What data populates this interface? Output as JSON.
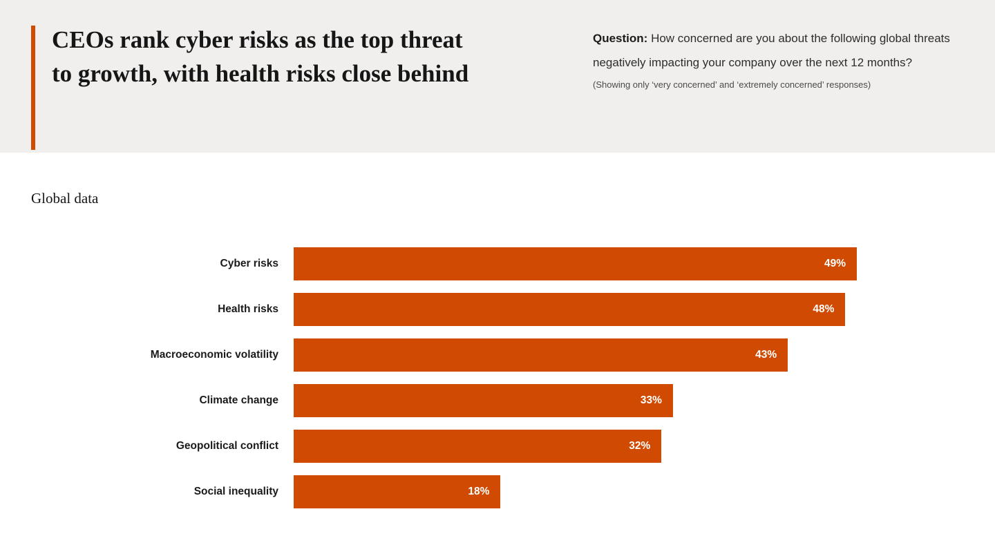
{
  "header": {
    "title": "CEOs rank cyber risks as the top threat to growth, with health risks close behind",
    "question_label": "Question:",
    "question_text": "How concerned are you about the following global threats negatively impacting your company over the next 12 months?",
    "question_note": "(Showing only ‘very concerned’ and ‘extremely concerned’ responses)",
    "accent_color": "#d04a02",
    "background_color": "#f0efed"
  },
  "section_label": "Global data",
  "chart_data": {
    "type": "bar",
    "orientation": "horizontal",
    "title": "CEOs rank cyber risks as the top threat to growth, with health risks close behind",
    "categories": [
      "Cyber risks",
      "Health risks",
      "Macroeconomic volatility",
      "Climate change",
      "Geopolitical conflict",
      "Social inequality"
    ],
    "values": [
      49,
      48,
      43,
      33,
      32,
      18
    ],
    "value_labels": [
      "49%",
      "48%",
      "43%",
      "33%",
      "32%",
      "18%"
    ],
    "unit": "%",
    "xlim": [
      0,
      49
    ],
    "bar_color": "#d04a02",
    "value_label_color": "#ffffff",
    "grid": false,
    "legend": false
  }
}
